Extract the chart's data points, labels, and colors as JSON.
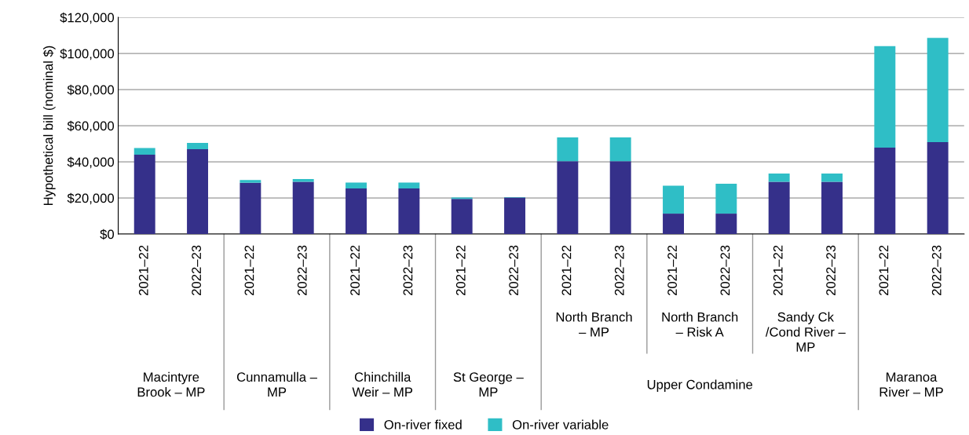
{
  "chart_data": {
    "type": "bar",
    "stacked": true,
    "ylabel": "Hypothetical bill (nominal $)",
    "categories": [
      "2021–22",
      "2022–23",
      "2021–22",
      "2022–23",
      "2021–22",
      "2022–23",
      "2021–22",
      "2022–23",
      "2021–22",
      "2022–23",
      "2021–22",
      "2022–23",
      "2021–22",
      "2022–23",
      "2021–22",
      "2022–23"
    ],
    "series": [
      {
        "name": "On-river fixed",
        "color": "#35308a",
        "values": [
          44000,
          47000,
          28400,
          29000,
          25300,
          25300,
          19500,
          20200,
          40400,
          40400,
          11300,
          11300,
          28900,
          28900,
          47900,
          50900
        ]
      },
      {
        "name": "On-river variable",
        "color": "#2fbec6",
        "values": [
          3600,
          3500,
          1500,
          1500,
          3200,
          3200,
          800,
          300,
          13100,
          13100,
          15500,
          16600,
          4600,
          4600,
          56200,
          57800
        ]
      }
    ],
    "ylim": [
      0,
      120000
    ],
    "yticks": [
      {
        "value": 0,
        "label": "$0"
      },
      {
        "value": 20000,
        "label": "$20,000"
      },
      {
        "value": 40000,
        "label": "$40,000"
      },
      {
        "value": 60000,
        "label": "$60,000"
      },
      {
        "value": 80000,
        "label": "$80,000"
      },
      {
        "value": 100000,
        "label": "$100,000"
      },
      {
        "value": 120000,
        "label": "$120,000"
      }
    ],
    "grid": "y",
    "legend": "bottom",
    "annotations": [
      "Macintyre\nBrook – MP",
      "Cunnamulla –\nMP",
      "Chinchilla\nWeir – MP",
      "St George –\nMP",
      "North Branch\n– MP",
      "North Branch\n– Risk A",
      "Sandy Ck\n/Cond River –\nMP",
      "Upper Condamine",
      "Maranoa\nRiver – MP"
    ]
  }
}
